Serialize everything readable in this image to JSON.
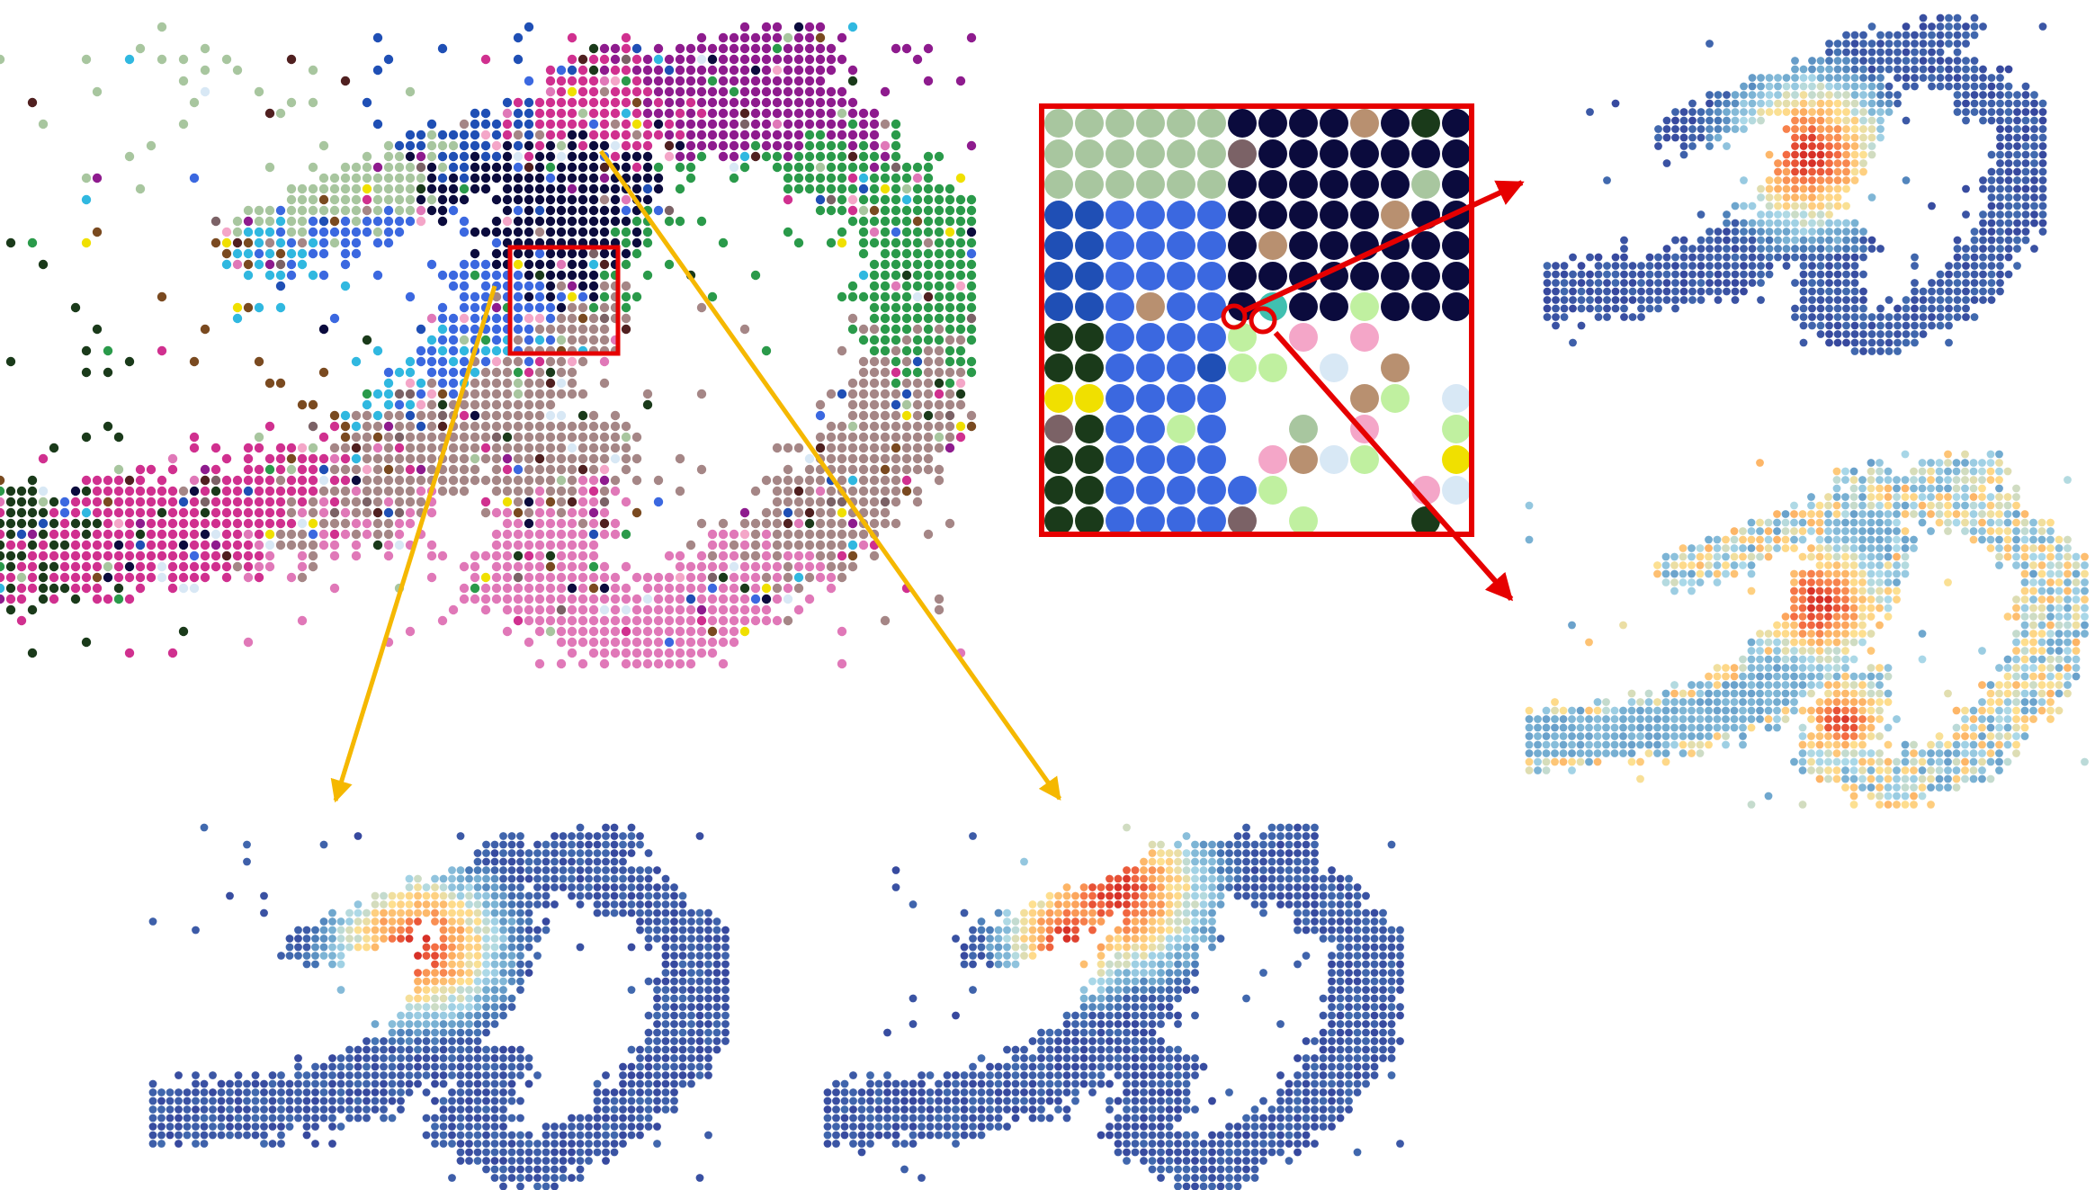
{
  "figure": {
    "text": [],
    "panels": [
      {
        "id": "spatial-cluster-map",
        "kind": "categorical-dot-map",
        "palette": [
          "#a8c69f",
          "#1f4fb5",
          "#3b68e0",
          "#0b0b3d",
          "#7b6266",
          "#8e1b8e",
          "#d0308f",
          "#e078b8",
          "#1a3a1a",
          "#f0e000",
          "#d8e8f5",
          "#7a4a20",
          "#2a9a4a",
          "#30b8e0",
          "#f4a6c8",
          "#502020",
          "#a58686"
        ],
        "highlight": {
          "label": "",
          "color": "#e60000"
        }
      },
      {
        "id": "zoom-inset",
        "kind": "magnified-dot-grid",
        "frame_color": "#e60000",
        "palette": [
          "#a8c69f",
          "#1f4fb5",
          "#3b68e0",
          "#0b0b3d",
          "#7b6266",
          "#1a3a1a",
          "#f0e000",
          "#f4a6c8",
          "#d8e8f5",
          "#b89070",
          "#c0f0a0",
          "#40c0b0"
        ]
      },
      {
        "id": "heatmap-top-right",
        "kind": "continuous-heatmap",
        "colormap": [
          "#313695",
          "#4575b4",
          "#74add1",
          "#abd9e9",
          "#fee090",
          "#fdae61",
          "#f46d43",
          "#d73027"
        ]
      },
      {
        "id": "heatmap-middle-right",
        "kind": "continuous-heatmap",
        "colormap": [
          "#313695",
          "#4575b4",
          "#74add1",
          "#abd9e9",
          "#fee090",
          "#fdae61",
          "#f46d43",
          "#d73027"
        ]
      },
      {
        "id": "heatmap-bottom-left",
        "kind": "continuous-heatmap",
        "colormap": [
          "#313695",
          "#4575b4",
          "#74add1",
          "#abd9e9",
          "#fee090",
          "#fdae61",
          "#f46d43",
          "#d73027"
        ]
      },
      {
        "id": "heatmap-bottom-center",
        "kind": "continuous-heatmap",
        "colormap": [
          "#313695",
          "#4575b4",
          "#74add1",
          "#abd9e9",
          "#fee090",
          "#fdae61",
          "#f46d43",
          "#d73027"
        ]
      }
    ],
    "arrows": [
      {
        "id": "orange-arrow-left",
        "color": "#f5b800"
      },
      {
        "id": "orange-arrow-right",
        "color": "#f5b800"
      },
      {
        "id": "red-arrow-upper",
        "color": "#e60000"
      },
      {
        "id": "red-arrow-lower",
        "color": "#e60000"
      }
    ]
  }
}
